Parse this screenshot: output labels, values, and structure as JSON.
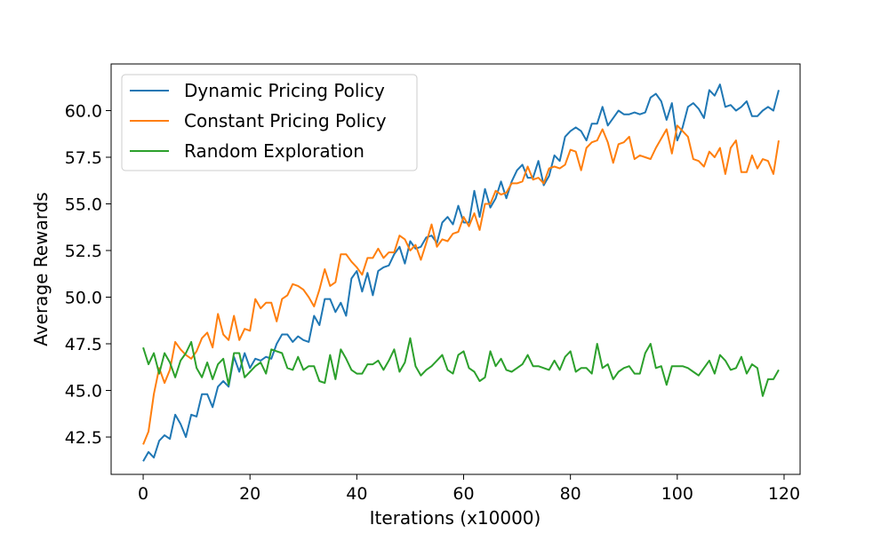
{
  "chart_data": {
    "type": "line",
    "title": "",
    "xlabel": "Iterations (x10000)",
    "ylabel": "Average Rewards",
    "xlim": [
      -6,
      123
    ],
    "ylim": [
      40.5,
      62.5
    ],
    "xticks": [
      0,
      20,
      40,
      60,
      80,
      100,
      120
    ],
    "yticks": [
      42.5,
      45.0,
      47.5,
      50.0,
      52.5,
      55.0,
      57.5,
      60.0
    ],
    "xtick_labels": [
      "0",
      "20",
      "40",
      "60",
      "80",
      "100",
      "120"
    ],
    "ytick_labels": [
      "42.5",
      "45.0",
      "47.5",
      "50.0",
      "52.5",
      "55.0",
      "57.5",
      "60.0"
    ],
    "grid": false,
    "legend_position": "upper-left",
    "series": [
      {
        "name": "Dynamic Pricing Policy",
        "color": "#1f77b4",
        "values": [
          41.2,
          41.7,
          41.4,
          42.3,
          42.6,
          42.4,
          43.7,
          43.2,
          42.5,
          43.7,
          43.6,
          44.8,
          44.8,
          44.1,
          45.2,
          45.5,
          45.2,
          46.8,
          46.0,
          47.0,
          46.2,
          46.7,
          46.6,
          46.8,
          46.7,
          47.5,
          48.0,
          48.0,
          47.6,
          47.9,
          47.7,
          47.6,
          49.0,
          48.5,
          49.9,
          49.9,
          49.2,
          49.7,
          49.0,
          51.0,
          51.4,
          50.3,
          51.3,
          50.1,
          51.4,
          51.6,
          51.7,
          52.3,
          52.7,
          51.8,
          53.0,
          52.6,
          52.7,
          53.2,
          53.3,
          52.9,
          54.0,
          54.3,
          53.9,
          54.9,
          54.0,
          54.0,
          55.7,
          54.3,
          55.8,
          54.8,
          55.3,
          56.2,
          55.3,
          56.2,
          56.8,
          57.1,
          56.4,
          56.4,
          57.3,
          56.0,
          56.5,
          57.6,
          57.3,
          58.6,
          58.9,
          59.1,
          58.9,
          58.4,
          59.3,
          59.3,
          60.2,
          59.2,
          59.6,
          60.0,
          59.8,
          59.8,
          59.9,
          59.8,
          59.9,
          60.7,
          60.9,
          60.5,
          59.5,
          60.4,
          58.4,
          59.1,
          60.2,
          60.4,
          60.1,
          59.6,
          61.1,
          60.8,
          61.4,
          60.2,
          60.3,
          60.0,
          60.2,
          60.5,
          59.7,
          59.7,
          60.0,
          60.2,
          60.0,
          61.1
        ]
      },
      {
        "name": "Constant Pricing Policy",
        "color": "#ff7f0e",
        "values": [
          42.1,
          42.8,
          44.8,
          46.2,
          45.4,
          46.1,
          47.6,
          47.2,
          46.9,
          46.7,
          47.1,
          47.8,
          48.1,
          47.3,
          49.1,
          48.0,
          47.7,
          49.0,
          47.7,
          48.3,
          48.2,
          49.9,
          49.4,
          49.7,
          49.7,
          48.7,
          49.9,
          50.1,
          50.7,
          50.6,
          50.4,
          50.0,
          49.5,
          50.4,
          51.5,
          50.6,
          50.8,
          52.3,
          52.3,
          51.9,
          51.6,
          51.2,
          52.1,
          52.1,
          52.6,
          52.1,
          52.4,
          52.4,
          53.3,
          53.1,
          52.5,
          52.8,
          52.0,
          52.9,
          53.9,
          52.7,
          53.1,
          53.0,
          53.4,
          53.5,
          54.3,
          53.8,
          54.5,
          53.6,
          55.0,
          55.0,
          55.7,
          55.5,
          55.6,
          56.1,
          56.1,
          56.2,
          57.0,
          56.3,
          56.4,
          56.1,
          56.9,
          57.0,
          56.9,
          57.1,
          57.9,
          57.8,
          56.8,
          58.0,
          58.3,
          58.4,
          59.0,
          58.3,
          57.2,
          58.2,
          58.3,
          58.6,
          57.4,
          57.6,
          57.5,
          57.4,
          58.0,
          58.5,
          59.0,
          57.7,
          59.2,
          58.9,
          58.6,
          57.4,
          57.3,
          57.0,
          57.8,
          57.5,
          58.0,
          56.6,
          58.0,
          58.4,
          56.7,
          56.7,
          57.6,
          56.9,
          57.4,
          57.3,
          56.6,
          58.4
        ]
      },
      {
        "name": "Random Exploration",
        "color": "#2ca02c",
        "values": [
          47.3,
          46.4,
          47.0,
          45.9,
          47.0,
          46.5,
          45.7,
          46.6,
          47.0,
          47.6,
          46.2,
          45.7,
          46.5,
          45.6,
          46.4,
          46.7,
          45.3,
          47.0,
          47.0,
          45.7,
          46.0,
          46.3,
          46.5,
          45.9,
          47.2,
          47.1,
          47.0,
          46.2,
          46.1,
          46.8,
          46.1,
          46.3,
          46.3,
          45.5,
          45.4,
          46.9,
          45.6,
          47.2,
          46.7,
          46.1,
          45.9,
          45.9,
          46.4,
          46.4,
          46.6,
          46.1,
          46.6,
          47.2,
          46.0,
          46.5,
          47.8,
          46.3,
          45.8,
          46.1,
          46.3,
          46.6,
          46.9,
          46.1,
          45.9,
          46.9,
          47.1,
          46.2,
          46.0,
          45.5,
          45.7,
          47.1,
          46.3,
          46.7,
          46.1,
          46.0,
          46.2,
          46.4,
          46.9,
          46.3,
          46.3,
          46.2,
          46.1,
          46.6,
          46.1,
          46.8,
          47.1,
          46.0,
          46.2,
          46.2,
          45.9,
          47.5,
          46.2,
          46.4,
          45.6,
          46.0,
          46.2,
          46.3,
          45.9,
          45.9,
          47.0,
          47.5,
          46.2,
          46.3,
          45.3,
          46.3,
          46.3,
          46.3,
          46.2,
          46.0,
          45.8,
          46.2,
          46.6,
          45.9,
          46.9,
          46.6,
          46.1,
          46.2,
          46.8,
          45.9,
          46.4,
          46.2,
          44.7,
          45.6,
          45.6,
          46.1
        ]
      }
    ]
  }
}
